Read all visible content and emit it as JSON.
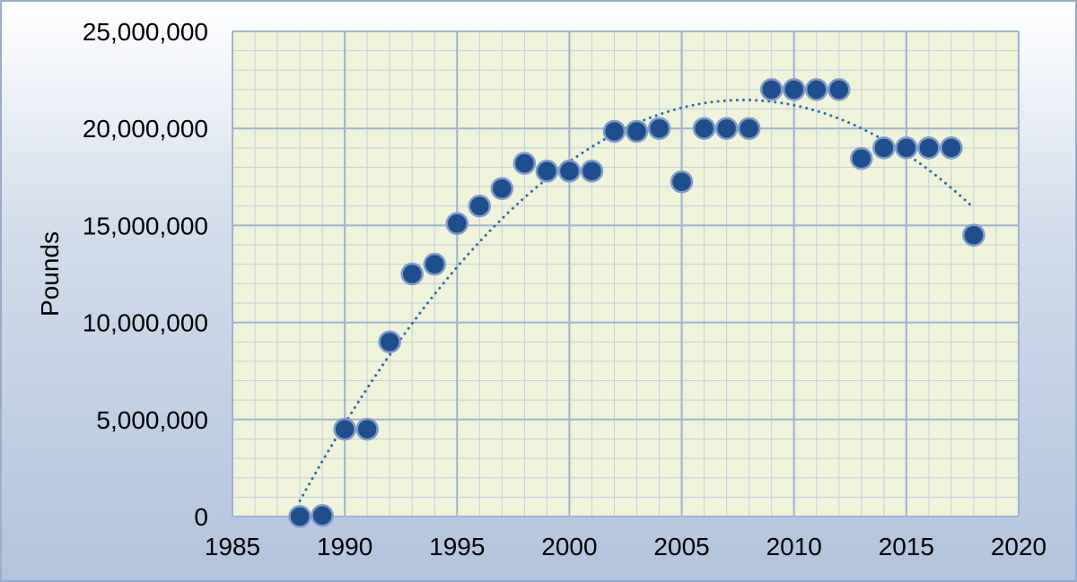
{
  "chart_data": {
    "type": "scatter",
    "title": "",
    "xlabel": "",
    "ylabel": "Pounds",
    "xlim": [
      1985,
      2020
    ],
    "ylim": [
      0,
      25000000
    ],
    "x_ticks": [
      1985,
      1990,
      1995,
      2000,
      2005,
      2010,
      2015,
      2020
    ],
    "y_ticks": [
      0,
      5000000,
      10000000,
      15000000,
      20000000,
      25000000
    ],
    "x_tick_labels": [
      "1985",
      "1990",
      "1995",
      "2000",
      "2005",
      "2010",
      "2015",
      "2020"
    ],
    "y_tick_labels": [
      "0",
      "5,000,000",
      "10,000,000",
      "15,000,000",
      "20,000,000",
      "25,000,000"
    ],
    "grid": true,
    "trendline": {
      "type": "polynomial",
      "style": "dotted"
    },
    "series": [
      {
        "marker_color": "#1f4e8c",
        "points": [
          [
            1988,
            0
          ],
          [
            1989,
            50000
          ],
          [
            1990,
            4500000
          ],
          [
            1991,
            4500000
          ],
          [
            1992,
            9000000
          ],
          [
            1993,
            12500000
          ],
          [
            1994,
            13000000
          ],
          [
            1995,
            15100000
          ],
          [
            1996,
            16000000
          ],
          [
            1997,
            16900000
          ],
          [
            1998,
            18200000
          ],
          [
            1999,
            17800000
          ],
          [
            2000,
            17800000
          ],
          [
            2001,
            17800000
          ],
          [
            2002,
            19850000
          ],
          [
            2003,
            19850000
          ],
          [
            2004,
            20000000
          ],
          [
            2005,
            17250000
          ],
          [
            2006,
            20000000
          ],
          [
            2007,
            20000000
          ],
          [
            2008,
            20000000
          ],
          [
            2009,
            22000000
          ],
          [
            2010,
            22000000
          ],
          [
            2011,
            22000000
          ],
          [
            2012,
            22000000
          ],
          [
            2013,
            18450000
          ],
          [
            2014,
            19000000
          ],
          [
            2015,
            19000000
          ],
          [
            2016,
            19000000
          ],
          [
            2017,
            19000000
          ],
          [
            2018,
            14500000
          ]
        ]
      }
    ],
    "colors": {
      "plot_background": "#eef3d9",
      "major_grid": "#9fb3d3",
      "minor_grid": "#c3cee0",
      "marker_fill": "#1f4e8c",
      "marker_stroke": "#7f9cc8",
      "trendline": "#2e6aa8"
    }
  }
}
